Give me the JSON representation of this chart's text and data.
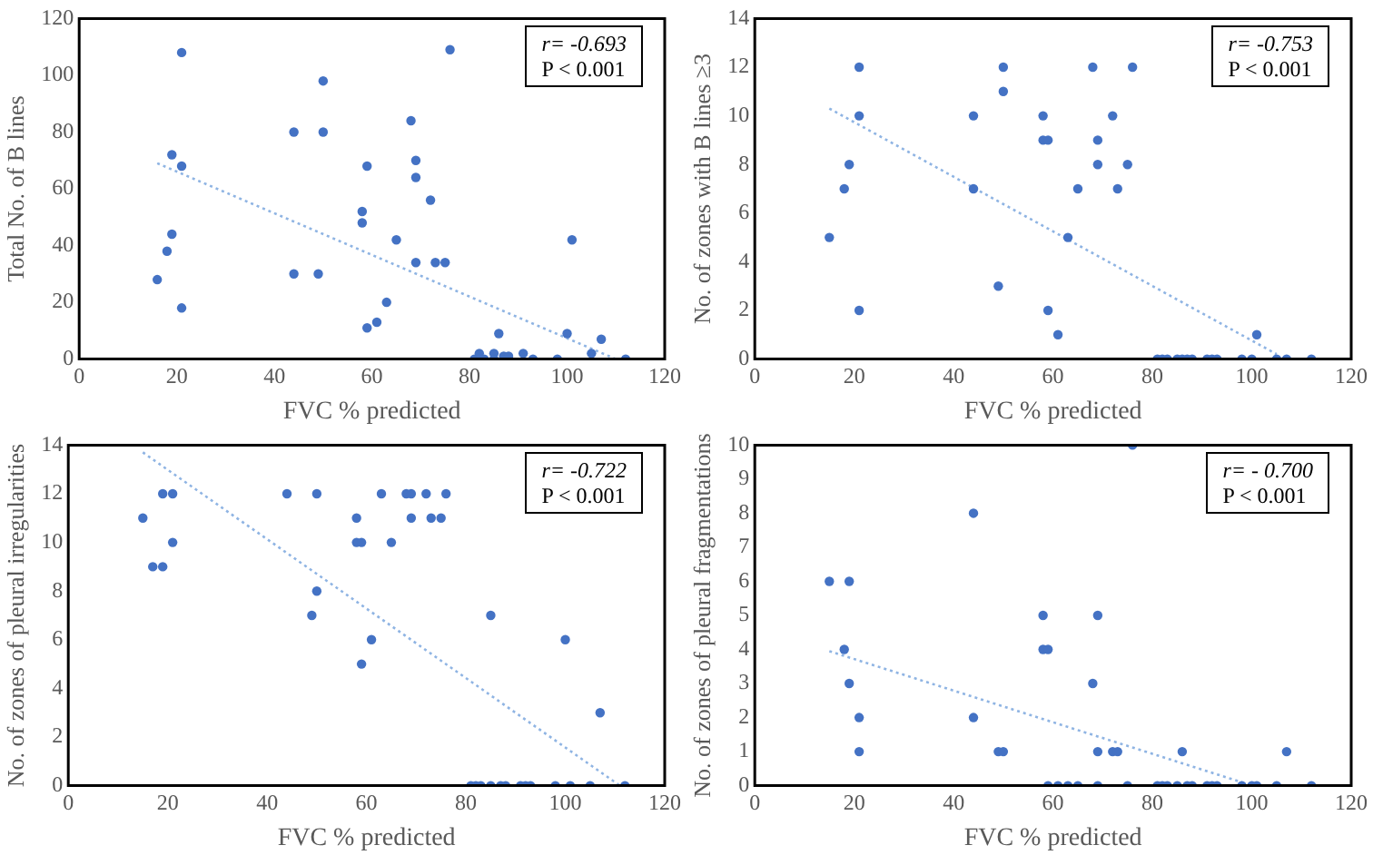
{
  "chart_data": [
    {
      "type": "scatter",
      "xlabel": "FVC % predicted",
      "ylabel": "Total No. of B lines",
      "xlim": [
        0,
        120
      ],
      "xticks": [
        0,
        20,
        40,
        60,
        80,
        100,
        120
      ],
      "ylim": [
        0,
        120
      ],
      "yticks": [
        0,
        20,
        40,
        60,
        80,
        100,
        120
      ],
      "grid": false,
      "legend": false,
      "marker": "circle",
      "annotations": [
        "r= -0.693",
        "P < 0.001"
      ],
      "series": [
        {
          "type": "scatter",
          "color": "#4472c4",
          "x": [
            16,
            18,
            19,
            19,
            21,
            21,
            21,
            44,
            44,
            49,
            50,
            50,
            58,
            58,
            59,
            59,
            61,
            63,
            65,
            68,
            69,
            69,
            69,
            72,
            73,
            75,
            76,
            81,
            82,
            83,
            85,
            85,
            86,
            87,
            88,
            91,
            93,
            98,
            100,
            101,
            105,
            107,
            112
          ],
          "values": [
            28,
            38,
            44,
            72,
            68,
            108,
            18,
            80,
            30,
            30,
            98,
            80,
            52,
            48,
            68,
            11,
            13,
            20,
            42,
            84,
            70,
            64,
            34,
            56,
            34,
            34,
            109,
            0,
            2,
            0,
            2,
            0,
            9,
            1,
            1,
            2,
            0,
            0,
            9,
            42,
            2,
            7,
            0
          ]
        },
        {
          "type": "line",
          "color": "#8fb4e3",
          "line_style": "dotted",
          "marker": "none",
          "x": [
            16,
            110
          ],
          "values": [
            69,
            0
          ]
        }
      ]
    },
    {
      "type": "scatter",
      "xlabel": "FVC % predicted",
      "ylabel": "No. of zones with B lines ≥3",
      "xlim": [
        0,
        120
      ],
      "xticks": [
        0,
        20,
        40,
        60,
        80,
        100,
        120
      ],
      "ylim": [
        0,
        14
      ],
      "yticks": [
        0,
        2,
        4,
        6,
        8,
        10,
        12,
        14
      ],
      "grid": false,
      "legend": false,
      "marker": "circle",
      "annotations": [
        "r= -0.753",
        "P < 0.001"
      ],
      "series": [
        {
          "type": "scatter",
          "color": "#4472c4",
          "x": [
            15,
            18,
            19,
            21,
            21,
            21,
            44,
            44,
            49,
            50,
            50,
            58,
            58,
            59,
            59,
            61,
            63,
            65,
            68,
            69,
            69,
            72,
            73,
            75,
            76,
            81,
            82,
            83,
            85,
            86,
            87,
            88,
            91,
            92,
            93,
            98,
            100,
            101,
            105,
            107,
            112
          ],
          "values": [
            5,
            7,
            8,
            12,
            10,
            2,
            10,
            7,
            3,
            12,
            11,
            10,
            9,
            9,
            2,
            1,
            5,
            7,
            12,
            9,
            8,
            10,
            7,
            8,
            12,
            0,
            0,
            0,
            0,
            0,
            0,
            0,
            0,
            0,
            0,
            0,
            0,
            1,
            0,
            0,
            0
          ]
        },
        {
          "type": "line",
          "color": "#8fb4e3",
          "line_style": "dotted",
          "marker": "none",
          "x": [
            15,
            105
          ],
          "values": [
            10.3,
            0.2
          ]
        }
      ]
    },
    {
      "type": "scatter",
      "xlabel": "FVC % predicted",
      "ylabel": "No. of zones of pleural irregularities",
      "xlim": [
        0,
        120
      ],
      "xticks": [
        0,
        20,
        40,
        60,
        80,
        100,
        120
      ],
      "ylim": [
        0,
        14
      ],
      "yticks": [
        0,
        2,
        4,
        6,
        8,
        10,
        12,
        14
      ],
      "grid": false,
      "legend": false,
      "marker": "circle",
      "annotations": [
        "r= -0.722",
        "P < 0.001"
      ],
      "series": [
        {
          "type": "scatter",
          "color": "#4472c4",
          "x": [
            15,
            17,
            19,
            19,
            21,
            21,
            44,
            49,
            50,
            50,
            58,
            58,
            59,
            59,
            61,
            63,
            65,
            68,
            69,
            69,
            72,
            73,
            75,
            76,
            85,
            100,
            107,
            81,
            82,
            83,
            85,
            87,
            88,
            91,
            92,
            93,
            98,
            101,
            105,
            112
          ],
          "values": [
            11,
            9,
            9,
            12,
            12,
            10,
            12,
            7,
            8,
            12,
            11,
            10,
            10,
            5,
            6,
            12,
            10,
            12,
            12,
            11,
            12,
            11,
            11,
            12,
            7,
            6,
            3,
            0,
            0,
            0,
            0,
            0,
            0,
            0,
            0,
            0,
            0,
            0,
            0,
            0
          ]
        },
        {
          "type": "line",
          "color": "#8fb4e3",
          "line_style": "dotted",
          "marker": "none",
          "x": [
            15,
            111
          ],
          "values": [
            13.7,
            0
          ]
        }
      ]
    },
    {
      "type": "scatter",
      "xlabel": "FVC % predicted",
      "ylabel": "No. of zones of pleural fragmentations",
      "xlim": [
        0,
        120
      ],
      "xticks": [
        0,
        20,
        40,
        60,
        80,
        100,
        120
      ],
      "ylim": [
        0,
        10
      ],
      "yticks": [
        0,
        1,
        2,
        3,
        4,
        5,
        6,
        7,
        8,
        9,
        10
      ],
      "grid": false,
      "legend": false,
      "marker": "circle",
      "annotations": [
        "r= - 0.700",
        "P < 0.001"
      ],
      "series": [
        {
          "type": "scatter",
          "color": "#4472c4",
          "x": [
            15,
            18,
            19,
            19,
            21,
            21,
            44,
            44,
            49,
            50,
            58,
            58,
            59,
            59,
            61,
            63,
            65,
            68,
            69,
            69,
            69,
            72,
            73,
            75,
            76,
            81,
            82,
            83,
            85,
            86,
            87,
            88,
            91,
            92,
            93,
            98,
            100,
            101,
            105,
            107,
            112
          ],
          "values": [
            6,
            4,
            6,
            3,
            2,
            1,
            8,
            2,
            1,
            1,
            5,
            4,
            4,
            0,
            0,
            0,
            0,
            3,
            5,
            1,
            0,
            1,
            1,
            0,
            10,
            0,
            0,
            0,
            0,
            1,
            0,
            0,
            0,
            0,
            0,
            0,
            0,
            0,
            0,
            1,
            0
          ]
        },
        {
          "type": "line",
          "color": "#8fb4e3",
          "line_style": "dotted",
          "marker": "none",
          "x": [
            15,
            98
          ],
          "values": [
            3.95,
            0.1
          ]
        }
      ]
    }
  ]
}
